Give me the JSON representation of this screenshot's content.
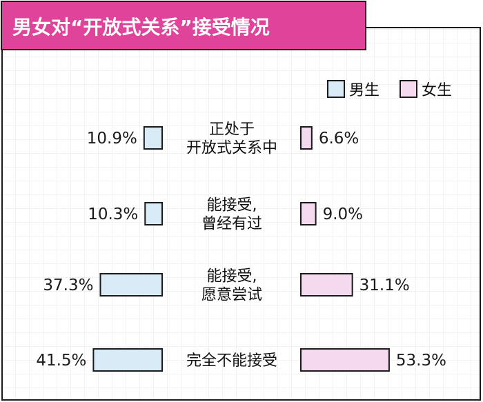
{
  "chart_data": {
    "type": "bar",
    "title": "男女对“开放式关系”接受情况",
    "categories": [
      [
        "正处于",
        "开放式关系中"
      ],
      [
        "能接受,",
        "曾经有过"
      ],
      [
        "能接受,",
        "愿意尝试"
      ],
      [
        "完全不能接受"
      ]
    ],
    "series": [
      {
        "name": "男生",
        "values": [
          10.9,
          10.3,
          37.3,
          41.5
        ],
        "labels": [
          "10.9%",
          "10.3%",
          "37.3%",
          "41.5%"
        ],
        "color": "#d9ebf7"
      },
      {
        "name": "女生",
        "values": [
          6.6,
          9.0,
          31.1,
          53.3
        ],
        "labels": [
          "6.6%",
          "9.0%",
          "31.1%",
          "53.3%"
        ],
        "color": "#f5d9ee"
      }
    ],
    "legend": "top-right",
    "grid": true
  },
  "colors": {
    "title_bg": "#e0449a",
    "male_fill": "#d9ebf7",
    "female_fill": "#f5d9ee",
    "outline": "#1a1a1a",
    "grid": "#e6e6e6"
  }
}
